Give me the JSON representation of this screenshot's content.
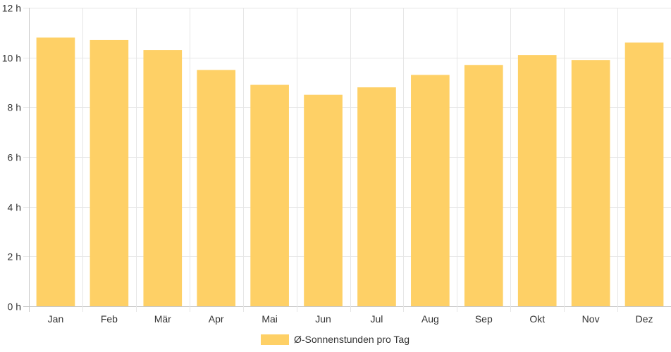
{
  "chart_data": {
    "type": "bar",
    "categories": [
      "Jan",
      "Feb",
      "Mär",
      "Apr",
      "Mai",
      "Jun",
      "Jul",
      "Aug",
      "Sep",
      "Okt",
      "Nov",
      "Dez"
    ],
    "series": [
      {
        "name": "Ø-Sonnenstunden pro Tag",
        "values": [
          10.8,
          10.7,
          10.3,
          9.5,
          8.9,
          8.5,
          8.8,
          9.3,
          9.7,
          10.1,
          9.9,
          10.6
        ],
        "color": "#fed066"
      }
    ],
    "ylim": [
      0,
      12
    ],
    "yticks": [
      0,
      2,
      4,
      6,
      8,
      10,
      12
    ],
    "y_unit_suffix": " h",
    "grid": true,
    "legend_position": "bottom-center"
  }
}
